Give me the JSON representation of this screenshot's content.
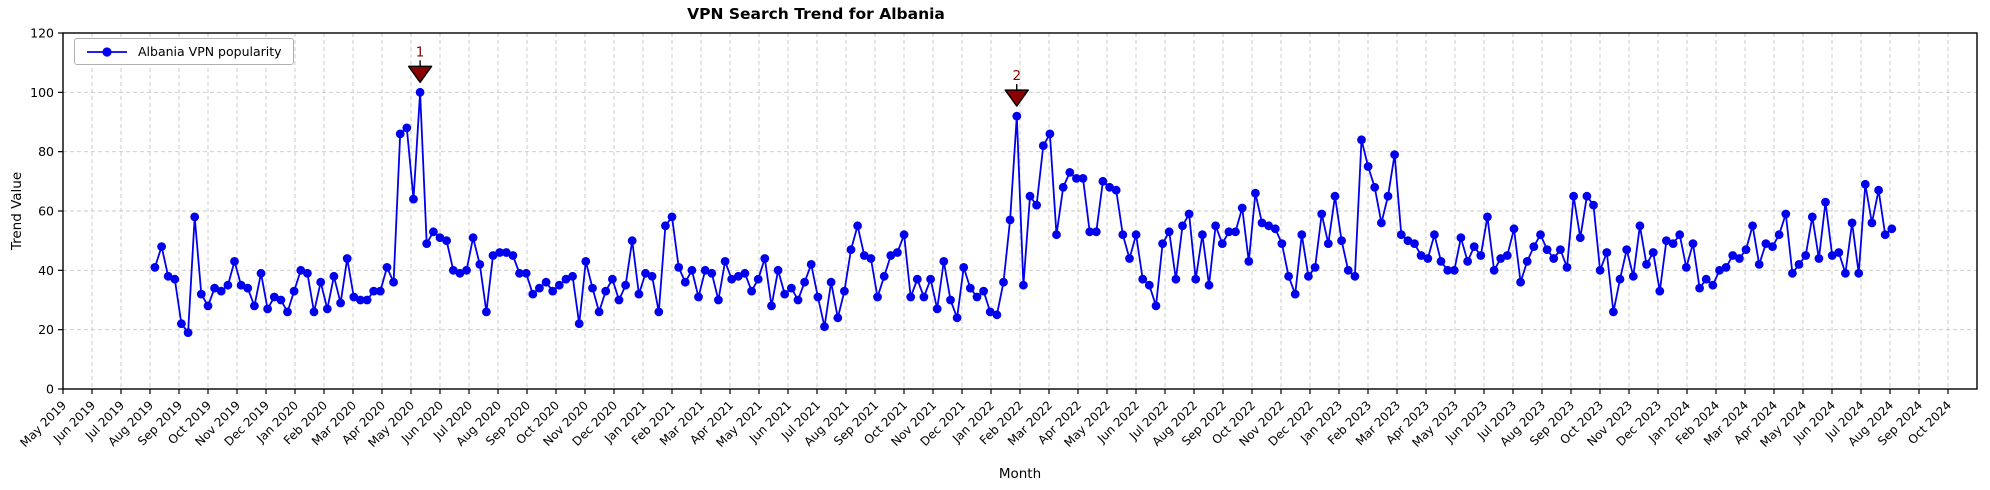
{
  "chart_data": {
    "type": "line",
    "title": "VPN Search Trend for Albania",
    "xlabel": "Month",
    "ylabel": "Trend Value",
    "ylim": [
      0,
      120
    ],
    "yticks": [
      0,
      20,
      40,
      60,
      80,
      100,
      120
    ],
    "grid": true,
    "x_months_span": 66,
    "x_tick_labels": [
      "May 2019",
      "Jun 2019",
      "Jul 2019",
      "Aug 2019",
      "Sep 2019",
      "Oct 2019",
      "Nov 2019",
      "Dec 2019",
      "Jan 2020",
      "Feb 2020",
      "Mar 2020",
      "Apr 2020",
      "May 2020",
      "Jun 2020",
      "Jul 2020",
      "Aug 2020",
      "Sep 2020",
      "Oct 2020",
      "Nov 2020",
      "Dec 2020",
      "Jan 2021",
      "Feb 2021",
      "Mar 2021",
      "Apr 2021",
      "May 2021",
      "Jun 2021",
      "Jul 2021",
      "Aug 2021",
      "Sep 2021",
      "Oct 2021",
      "Nov 2021",
      "Dec 2021",
      "Jan 2022",
      "Feb 2022",
      "Mar 2022",
      "Apr 2022",
      "May 2022",
      "Jun 2022",
      "Jul 2022",
      "Aug 2022",
      "Sep 2022",
      "Oct 2022",
      "Nov 2022",
      "Dec 2022",
      "Jan 2023",
      "Feb 2023",
      "Mar 2023",
      "Apr 2023",
      "May 2023",
      "Jun 2023",
      "Jul 2023",
      "Aug 2023",
      "Sep 2023",
      "Oct 2023",
      "Nov 2023",
      "Dec 2023",
      "Jan 2024",
      "Feb 2024",
      "Mar 2024",
      "Apr 2024",
      "May 2024",
      "Jun 2024",
      "Jul 2024",
      "Aug 2024",
      "Sep 2024",
      "Oct 2024"
    ],
    "legend": {
      "label": "Albania VPN popularity",
      "position": "upper left"
    },
    "series": [
      {
        "name": "Albania VPN popularity",
        "color": "#0000ee",
        "frequency": "weekly",
        "start_month_offset": 3.17,
        "week_step_months": 0.2286,
        "values": [
          41,
          48,
          38,
          37,
          22,
          19,
          58,
          32,
          28,
          34,
          33,
          35,
          43,
          35,
          34,
          28,
          39,
          27,
          31,
          30,
          26,
          33,
          40,
          39,
          26,
          36,
          27,
          38,
          29,
          44,
          31,
          30,
          30,
          33,
          33,
          41,
          36,
          86,
          88,
          64,
          100,
          49,
          53,
          51,
          50,
          40,
          39,
          40,
          51,
          42,
          26,
          45,
          46,
          46,
          45,
          39,
          39,
          32,
          34,
          36,
          33,
          35,
          37,
          38,
          22,
          43,
          34,
          26,
          33,
          37,
          30,
          35,
          50,
          32,
          39,
          38,
          26,
          55,
          58,
          41,
          36,
          40,
          31,
          40,
          39,
          30,
          43,
          37,
          38,
          39,
          33,
          37,
          44,
          28,
          40,
          32,
          34,
          30,
          36,
          42,
          31,
          21,
          36,
          24,
          33,
          47,
          55,
          45,
          44,
          31,
          38,
          45,
          46,
          52,
          31,
          37,
          31,
          37,
          27,
          43,
          30,
          24,
          41,
          34,
          31,
          33,
          26,
          25,
          36,
          57,
          92,
          35,
          65,
          62,
          82,
          86,
          52,
          68,
          73,
          71,
          71,
          53,
          53,
          70,
          68,
          67,
          52,
          44,
          52,
          37,
          35,
          28,
          49,
          53,
          37,
          55,
          59,
          37,
          52,
          35,
          55,
          49,
          53,
          53,
          61,
          43,
          66,
          56,
          55,
          54,
          49,
          38,
          32,
          52,
          38,
          41,
          59,
          49,
          65,
          50,
          40,
          38,
          84,
          75,
          68,
          56,
          65,
          79,
          52,
          50,
          49,
          45,
          44,
          52,
          43,
          40,
          40,
          51,
          43,
          48,
          45,
          58,
          40,
          44,
          45,
          54,
          36,
          43,
          48,
          52,
          47,
          44,
          47,
          41,
          65,
          51,
          65,
          62,
          40,
          46,
          26,
          37,
          47,
          38,
          55,
          42,
          46,
          33,
          50,
          49,
          52,
          41,
          49,
          34,
          37,
          35,
          40,
          41,
          45,
          44,
          47,
          55,
          42,
          49,
          48,
          52,
          59,
          39,
          42,
          45,
          58,
          44,
          63,
          45,
          46,
          39,
          56,
          39,
          69,
          56,
          67,
          52,
          54
        ]
      }
    ],
    "annotations": [
      {
        "label": "1",
        "point_index": 40,
        "value": 100,
        "marker": "triangle-down",
        "color": "#8b0000"
      },
      {
        "label": "2",
        "point_index": 130,
        "value": 92,
        "marker": "triangle-down",
        "color": "#8b0000"
      }
    ]
  }
}
